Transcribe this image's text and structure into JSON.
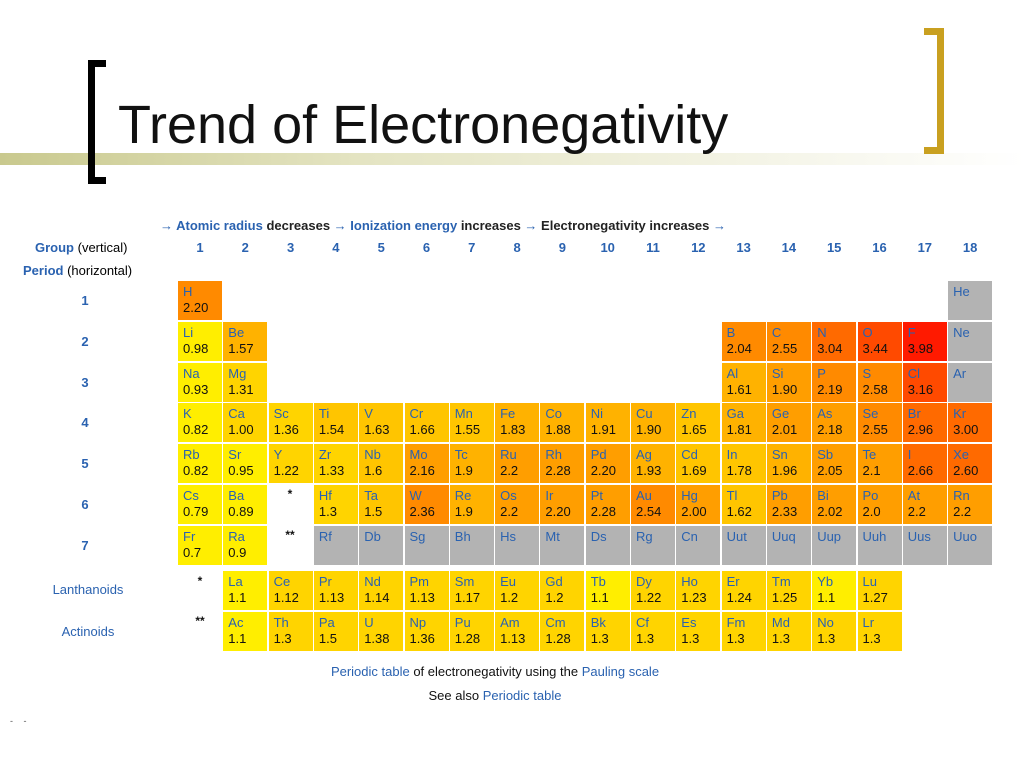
{
  "slide": {
    "title": "Trend of Electronegativity"
  },
  "trend": {
    "a1": "→",
    "radius": "Atomic radius",
    "decreases": " decreases ",
    "a2": "→",
    "ionization": "Ionization energy",
    "increases": " increases ",
    "a3": "→",
    "en": " Electronegativity increases ",
    "a4": "→"
  },
  "labels": {
    "group": "Group",
    "group_note": " (vertical)",
    "period": "Period",
    "period_note": " (horizontal)",
    "lanthanoids": "Lanthanoids",
    "actinoids": "Actinoids",
    "star1": "*",
    "star2": "**"
  },
  "groups": [
    "1",
    "2",
    "3",
    "4",
    "5",
    "6",
    "7",
    "8",
    "9",
    "10",
    "11",
    "12",
    "13",
    "14",
    "15",
    "16",
    "17",
    "18"
  ],
  "periods": [
    "1",
    "2",
    "3",
    "4",
    "5",
    "6",
    "7"
  ],
  "colors": {
    "y": "#ffee00",
    "ly": "#ffd400",
    "yo": "#ffc500",
    "lo": "#ffb200",
    "o": "#ff9e00",
    "do": "#ff8a00",
    "ro": "#ff6a00",
    "r": "#ff4a00",
    "red": "#ff1a00",
    "gray": "#b3b3b3"
  },
  "elements": [
    {
      "s": "H",
      "v": "2.20",
      "g": 1,
      "p": 1,
      "c": "do"
    },
    {
      "s": "He",
      "v": "",
      "g": 18,
      "p": 1,
      "c": "gray"
    },
    {
      "s": "Li",
      "v": "0.98",
      "g": 1,
      "p": 2,
      "c": "y"
    },
    {
      "s": "Be",
      "v": "1.57",
      "g": 2,
      "p": 2,
      "c": "lo"
    },
    {
      "s": "B",
      "v": "2.04",
      "g": 13,
      "p": 2,
      "c": "do"
    },
    {
      "s": "C",
      "v": "2.55",
      "g": 14,
      "p": 2,
      "c": "do"
    },
    {
      "s": "N",
      "v": "3.04",
      "g": 15,
      "p": 2,
      "c": "ro"
    },
    {
      "s": "O",
      "v": "3.44",
      "g": 16,
      "p": 2,
      "c": "r"
    },
    {
      "s": "F",
      "v": "3.98",
      "g": 17,
      "p": 2,
      "c": "red"
    },
    {
      "s": "Ne",
      "v": "",
      "g": 18,
      "p": 2,
      "c": "gray"
    },
    {
      "s": "Na",
      "v": "0.93",
      "g": 1,
      "p": 3,
      "c": "y"
    },
    {
      "s": "Mg",
      "v": "1.31",
      "g": 2,
      "p": 3,
      "c": "ly"
    },
    {
      "s": "Al",
      "v": "1.61",
      "g": 13,
      "p": 3,
      "c": "lo"
    },
    {
      "s": "Si",
      "v": "1.90",
      "g": 14,
      "p": 3,
      "c": "o"
    },
    {
      "s": "P",
      "v": "2.19",
      "g": 15,
      "p": 3,
      "c": "do"
    },
    {
      "s": "S",
      "v": "2.58",
      "g": 16,
      "p": 3,
      "c": "do"
    },
    {
      "s": "Cl",
      "v": "3.16",
      "g": 17,
      "p": 3,
      "c": "r"
    },
    {
      "s": "Ar",
      "v": "",
      "g": 18,
      "p": 3,
      "c": "gray"
    },
    {
      "s": "K",
      "v": "0.82",
      "g": 1,
      "p": 4,
      "c": "y"
    },
    {
      "s": "Ca",
      "v": "1.00",
      "g": 2,
      "p": 4,
      "c": "ly"
    },
    {
      "s": "Sc",
      "v": "1.36",
      "g": 3,
      "p": 4,
      "c": "ly"
    },
    {
      "s": "Ti",
      "v": "1.54",
      "g": 4,
      "p": 4,
      "c": "yo"
    },
    {
      "s": "V",
      "v": "1.63",
      "g": 5,
      "p": 4,
      "c": "yo"
    },
    {
      "s": "Cr",
      "v": "1.66",
      "g": 6,
      "p": 4,
      "c": "yo"
    },
    {
      "s": "Mn",
      "v": "1.55",
      "g": 7,
      "p": 4,
      "c": "yo"
    },
    {
      "s": "Fe",
      "v": "1.83",
      "g": 8,
      "p": 4,
      "c": "lo"
    },
    {
      "s": "Co",
      "v": "1.88",
      "g": 9,
      "p": 4,
      "c": "lo"
    },
    {
      "s": "Ni",
      "v": "1.91",
      "g": 10,
      "p": 4,
      "c": "lo"
    },
    {
      "s": "Cu",
      "v": "1.90",
      "g": 11,
      "p": 4,
      "c": "lo"
    },
    {
      "s": "Zn",
      "v": "1.65",
      "g": 12,
      "p": 4,
      "c": "yo"
    },
    {
      "s": "Ga",
      "v": "1.81",
      "g": 13,
      "p": 4,
      "c": "lo"
    },
    {
      "s": "Ge",
      "v": "2.01",
      "g": 14,
      "p": 4,
      "c": "o"
    },
    {
      "s": "As",
      "v": "2.18",
      "g": 15,
      "p": 4,
      "c": "o"
    },
    {
      "s": "Se",
      "v": "2.55",
      "g": 16,
      "p": 4,
      "c": "do"
    },
    {
      "s": "Br",
      "v": "2.96",
      "g": 17,
      "p": 4,
      "c": "ro"
    },
    {
      "s": "Kr",
      "v": "3.00",
      "g": 18,
      "p": 4,
      "c": "ro"
    },
    {
      "s": "Rb",
      "v": "0.82",
      "g": 1,
      "p": 5,
      "c": "y"
    },
    {
      "s": "Sr",
      "v": "0.95",
      "g": 2,
      "p": 5,
      "c": "y"
    },
    {
      "s": "Y",
      "v": "1.22",
      "g": 3,
      "p": 5,
      "c": "ly"
    },
    {
      "s": "Zr",
      "v": "1.33",
      "g": 4,
      "p": 5,
      "c": "ly"
    },
    {
      "s": "Nb",
      "v": "1.6",
      "g": 5,
      "p": 5,
      "c": "yo"
    },
    {
      "s": "Mo",
      "v": "2.16",
      "g": 6,
      "p": 5,
      "c": "o"
    },
    {
      "s": "Tc",
      "v": "1.9",
      "g": 7,
      "p": 5,
      "c": "lo"
    },
    {
      "s": "Ru",
      "v": "2.2",
      "g": 8,
      "p": 5,
      "c": "o"
    },
    {
      "s": "Rh",
      "v": "2.28",
      "g": 9,
      "p": 5,
      "c": "o"
    },
    {
      "s": "Pd",
      "v": "2.20",
      "g": 10,
      "p": 5,
      "c": "o"
    },
    {
      "s": "Ag",
      "v": "1.93",
      "g": 11,
      "p": 5,
      "c": "lo"
    },
    {
      "s": "Cd",
      "v": "1.69",
      "g": 12,
      "p": 5,
      "c": "yo"
    },
    {
      "s": "In",
      "v": "1.78",
      "g": 13,
      "p": 5,
      "c": "yo"
    },
    {
      "s": "Sn",
      "v": "1.96",
      "g": 14,
      "p": 5,
      "c": "lo"
    },
    {
      "s": "Sb",
      "v": "2.05",
      "g": 15,
      "p": 5,
      "c": "o"
    },
    {
      "s": "Te",
      "v": "2.1",
      "g": 16,
      "p": 5,
      "c": "o"
    },
    {
      "s": "I",
      "v": "2.66",
      "g": 17,
      "p": 5,
      "c": "ro"
    },
    {
      "s": "Xe",
      "v": "2.60",
      "g": 18,
      "p": 5,
      "c": "ro"
    },
    {
      "s": "Cs",
      "v": "0.79",
      "g": 1,
      "p": 6,
      "c": "y"
    },
    {
      "s": "Ba",
      "v": "0.89",
      "g": 2,
      "p": 6,
      "c": "y"
    },
    {
      "s": "Hf",
      "v": "1.3",
      "g": 4,
      "p": 6,
      "c": "ly"
    },
    {
      "s": "Ta",
      "v": "1.5",
      "g": 5,
      "p": 6,
      "c": "yo"
    },
    {
      "s": "W",
      "v": "2.36",
      "g": 6,
      "p": 6,
      "c": "do"
    },
    {
      "s": "Re",
      "v": "1.9",
      "g": 7,
      "p": 6,
      "c": "lo"
    },
    {
      "s": "Os",
      "v": "2.2",
      "g": 8,
      "p": 6,
      "c": "o"
    },
    {
      "s": "Ir",
      "v": "2.20",
      "g": 9,
      "p": 6,
      "c": "o"
    },
    {
      "s": "Pt",
      "v": "2.28",
      "g": 10,
      "p": 6,
      "c": "o"
    },
    {
      "s": "Au",
      "v": "2.54",
      "g": 11,
      "p": 6,
      "c": "do"
    },
    {
      "s": "Hg",
      "v": "2.00",
      "g": 12,
      "p": 6,
      "c": "o"
    },
    {
      "s": "Tl",
      "v": "1.62",
      "g": 13,
      "p": 6,
      "c": "yo"
    },
    {
      "s": "Pb",
      "v": "2.33",
      "g": 14,
      "p": 6,
      "c": "o"
    },
    {
      "s": "Bi",
      "v": "2.02",
      "g": 15,
      "p": 6,
      "c": "o"
    },
    {
      "s": "Po",
      "v": "2.0",
      "g": 16,
      "p": 6,
      "c": "o"
    },
    {
      "s": "At",
      "v": "2.2",
      "g": 17,
      "p": 6,
      "c": "o"
    },
    {
      "s": "Rn",
      "v": "2.2",
      "g": 18,
      "p": 6,
      "c": "o"
    },
    {
      "s": "Fr",
      "v": "0.7",
      "g": 1,
      "p": 7,
      "c": "y"
    },
    {
      "s": "Ra",
      "v": "0.9",
      "g": 2,
      "p": 7,
      "c": "y"
    },
    {
      "s": "Rf",
      "v": "",
      "g": 4,
      "p": 7,
      "c": "gray"
    },
    {
      "s": "Db",
      "v": "",
      "g": 5,
      "p": 7,
      "c": "gray"
    },
    {
      "s": "Sg",
      "v": "",
      "g": 6,
      "p": 7,
      "c": "gray"
    },
    {
      "s": "Bh",
      "v": "",
      "g": 7,
      "p": 7,
      "c": "gray"
    },
    {
      "s": "Hs",
      "v": "",
      "g": 8,
      "p": 7,
      "c": "gray"
    },
    {
      "s": "Mt",
      "v": "",
      "g": 9,
      "p": 7,
      "c": "gray"
    },
    {
      "s": "Ds",
      "v": "",
      "g": 10,
      "p": 7,
      "c": "gray"
    },
    {
      "s": "Rg",
      "v": "",
      "g": 11,
      "p": 7,
      "c": "gray"
    },
    {
      "s": "Cn",
      "v": "",
      "g": 12,
      "p": 7,
      "c": "gray"
    },
    {
      "s": "Uut",
      "v": "",
      "g": 13,
      "p": 7,
      "c": "gray"
    },
    {
      "s": "Uuq",
      "v": "",
      "g": 14,
      "p": 7,
      "c": "gray"
    },
    {
      "s": "Uup",
      "v": "",
      "g": 15,
      "p": 7,
      "c": "gray"
    },
    {
      "s": "Uuh",
      "v": "",
      "g": 16,
      "p": 7,
      "c": "gray"
    },
    {
      "s": "Uus",
      "v": "",
      "g": 17,
      "p": 7,
      "c": "gray"
    },
    {
      "s": "Uuo",
      "v": "",
      "g": 18,
      "p": 7,
      "c": "gray"
    }
  ],
  "lanthanoids": [
    {
      "s": "La",
      "v": "1.1"
    },
    {
      "s": "Ce",
      "v": "1.12"
    },
    {
      "s": "Pr",
      "v": "1.13"
    },
    {
      "s": "Nd",
      "v": "1.14"
    },
    {
      "s": "Pm",
      "v": "1.13"
    },
    {
      "s": "Sm",
      "v": "1.17"
    },
    {
      "s": "Eu",
      "v": "1.2"
    },
    {
      "s": "Gd",
      "v": "1.2"
    },
    {
      "s": "Tb",
      "v": "1.1"
    },
    {
      "s": "Dy",
      "v": "1.22"
    },
    {
      "s": "Ho",
      "v": "1.23"
    },
    {
      "s": "Er",
      "v": "1.24"
    },
    {
      "s": "Tm",
      "v": "1.25"
    },
    {
      "s": "Yb",
      "v": "1.1"
    },
    {
      "s": "Lu",
      "v": "1.27"
    }
  ],
  "actinoids": [
    {
      "s": "Ac",
      "v": "1.1"
    },
    {
      "s": "Th",
      "v": "1.3"
    },
    {
      "s": "Pa",
      "v": "1.5"
    },
    {
      "s": "U",
      "v": "1.38"
    },
    {
      "s": "Np",
      "v": "1.36"
    },
    {
      "s": "Pu",
      "v": "1.28"
    },
    {
      "s": "Am",
      "v": "1.13"
    },
    {
      "s": "Cm",
      "v": "1.28"
    },
    {
      "s": "Bk",
      "v": "1.3"
    },
    {
      "s": "Cf",
      "v": "1.3"
    },
    {
      "s": "Es",
      "v": "1.3"
    },
    {
      "s": "Fm",
      "v": "1.3"
    },
    {
      "s": "Md",
      "v": "1.3"
    },
    {
      "s": "No",
      "v": "1.3"
    },
    {
      "s": "Lr",
      "v": "1.3"
    }
  ],
  "footer": {
    "link1": "Periodic table",
    "text1": " of electronegativity using the ",
    "link2": "Pauling scale",
    "text2": "See also ",
    "link3": "Periodic table"
  },
  "stub": "- -"
}
